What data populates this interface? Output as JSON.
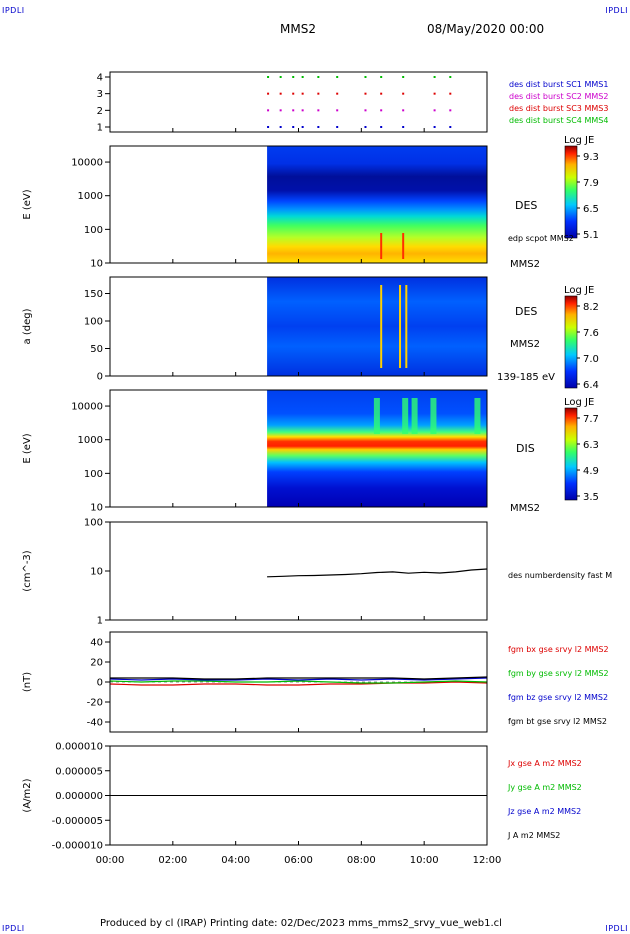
{
  "header": {
    "corner_label": "IPDLI",
    "spacecraft": "MMS2",
    "datetime": "08/May/2020 00:00"
  },
  "footer": {
    "text": "Produced by cl (IRAP)   Printing date: 02/Dec/2023   mms_mms2_srvy_vue_web1.cl"
  },
  "colors": {
    "mms1": "#0000cc",
    "mms2": "#cc00cc",
    "mms3": "#dd0000",
    "mms4": "#00bb00",
    "bx": "#dd0000",
    "by": "#00bb00",
    "bz": "#0000cc",
    "bt": "#000000"
  },
  "chart_data": [
    {
      "id": "burst",
      "type": "scatter",
      "ylim": [
        0.7,
        4.3
      ],
      "yticks": [
        "1",
        "2",
        "3",
        "4"
      ],
      "ytick_values": [
        1,
        2,
        3,
        4
      ],
      "legend": [
        {
          "label": "des dist burst SC1 MMS1",
          "color": "#0000cc",
          "y": 1
        },
        {
          "label": "des dist burst SC2 MMS2",
          "color": "#cc00cc",
          "y": 2
        },
        {
          "label": "des dist burst SC3 MMS3",
          "color": "#dd0000",
          "y": 3
        },
        {
          "label": "des dist burst SC4 MMS4",
          "color": "#00bb00",
          "y": 4
        }
      ],
      "burst_times_h": [
        5.0,
        5.4,
        5.8,
        6.1,
        6.6,
        7.2,
        8.1,
        8.6,
        9.3,
        10.3,
        10.8
      ]
    },
    {
      "id": "des_energy",
      "type": "heatmap",
      "ylabel": "E (eV)",
      "yscale": "log",
      "yticks": [
        "10",
        "100",
        "1000",
        "10000"
      ],
      "ytick_values": [
        10,
        100,
        1000,
        10000
      ],
      "ylim": [
        10,
        30000
      ],
      "data_start_h": 5.0,
      "right_labels": {
        "species": "DES",
        "extra": "edp scpot MMS2",
        "sc": "MMS2"
      },
      "colorbar": {
        "title": "Log JE",
        "ticks": [
          "9.3",
          "7.9",
          "6.5",
          "5.1"
        ]
      }
    },
    {
      "id": "des_pitch",
      "type": "heatmap",
      "ylabel": "a (deg)",
      "yticks": [
        "0",
        "50",
        "100",
        "150"
      ],
      "ytick_values": [
        0,
        50,
        100,
        150
      ],
      "ylim": [
        0,
        180
      ],
      "data_start_h": 5.0,
      "right_labels": {
        "species": "DES",
        "sc": "MMS2",
        "range": "139-185 eV"
      },
      "colorbar": {
        "title": "Log JE",
        "ticks": [
          "8.2",
          "7.6",
          "7.0",
          "6.4"
        ]
      }
    },
    {
      "id": "dis_energy",
      "type": "heatmap",
      "ylabel": "E (eV)",
      "yscale": "log",
      "yticks": [
        "10",
        "100",
        "1000",
        "10000"
      ],
      "ytick_values": [
        10,
        100,
        1000,
        10000
      ],
      "ylim": [
        10,
        30000
      ],
      "data_start_h": 5.0,
      "right_labels": {
        "species": "DIS",
        "sc": "MMS2"
      },
      "colorbar": {
        "title": "Log JE",
        "ticks": [
          "7.7",
          "6.3",
          "4.9",
          "3.5"
        ]
      }
    },
    {
      "id": "density",
      "type": "line",
      "ylabel": "(cm^-3)",
      "yscale": "log",
      "yticks": [
        "1",
        "10",
        "100"
      ],
      "ytick_values": [
        1,
        10,
        100
      ],
      "ylim": [
        1,
        100
      ],
      "legend": [
        {
          "label": "des numberdensity fast M",
          "color": "#000000"
        }
      ],
      "x_h": [
        5.0,
        5.5,
        6.0,
        6.5,
        7.0,
        7.5,
        8.0,
        8.5,
        9.0,
        9.5,
        10.0,
        10.5,
        11.0,
        11.5,
        12.0
      ],
      "values": [
        7.6,
        7.8,
        8.0,
        8.1,
        8.3,
        8.5,
        8.8,
        9.3,
        9.6,
        9.0,
        9.4,
        9.1,
        9.6,
        10.5,
        11.0
      ]
    },
    {
      "id": "fgm",
      "type": "line",
      "ylabel": "(nT)",
      "yticks": [
        "-40",
        "-20",
        "0",
        "20",
        "40"
      ],
      "ytick_values": [
        -40,
        -20,
        0,
        20,
        40
      ],
      "ylim": [
        -50,
        50
      ],
      "x_h": [
        0,
        1,
        2,
        3,
        4,
        5,
        6,
        7,
        8,
        9,
        10,
        11,
        12
      ],
      "series": [
        {
          "name": "fgm bx gse srvy l2 MMS2",
          "color": "#dd0000",
          "values": [
            -2,
            -3,
            -3,
            -2,
            -2,
            -3,
            -3,
            -2,
            -2,
            -1,
            -1,
            0,
            -1
          ]
        },
        {
          "name": "fgm by gse srvy l2 MMS2",
          "color": "#00bb00",
          "values": [
            1,
            0,
            1,
            1,
            0,
            0,
            1,
            0,
            -1,
            -1,
            0,
            1,
            0
          ]
        },
        {
          "name": "fgm bz gse srvy l2 MMS2",
          "color": "#0000cc",
          "values": [
            3,
            2,
            3,
            2,
            2,
            3,
            2,
            3,
            2,
            3,
            2,
            3,
            4
          ]
        },
        {
          "name": "fgm bt gse srvy l2 MMS2",
          "color": "#000000",
          "values": [
            4,
            4,
            4,
            3,
            3,
            4,
            4,
            4,
            4,
            4,
            3,
            4,
            5
          ]
        }
      ]
    },
    {
      "id": "current",
      "type": "line",
      "ylabel": "(A/m2)",
      "yticks": [
        "-0.000010",
        "-0.000005",
        "0.000000",
        "0.000005",
        "0.000010"
      ],
      "ytick_values": [
        -1e-05,
        -5e-06,
        0,
        5e-06,
        1e-05
      ],
      "ylim": [
        -1e-05,
        1e-05
      ],
      "x_h": [
        0,
        12
      ],
      "legend": [
        {
          "label": "Jx gse A m2 MMS2",
          "color": "#dd0000"
        },
        {
          "label": "Jy gse A m2 MMS2",
          "color": "#00bb00"
        },
        {
          "label": "Jz gse A m2 MMS2",
          "color": "#0000cc"
        },
        {
          "label": "J A m2 MMS2",
          "color": "#000000"
        }
      ],
      "values": [
        0,
        0
      ]
    }
  ],
  "xaxis": {
    "ticks": [
      "00:00",
      "02:00",
      "04:00",
      "06:00",
      "08:00",
      "10:00",
      "12:00"
    ],
    "tick_values_h": [
      0,
      2,
      4,
      6,
      8,
      10,
      12
    ],
    "xlim_h": [
      0,
      12
    ]
  }
}
